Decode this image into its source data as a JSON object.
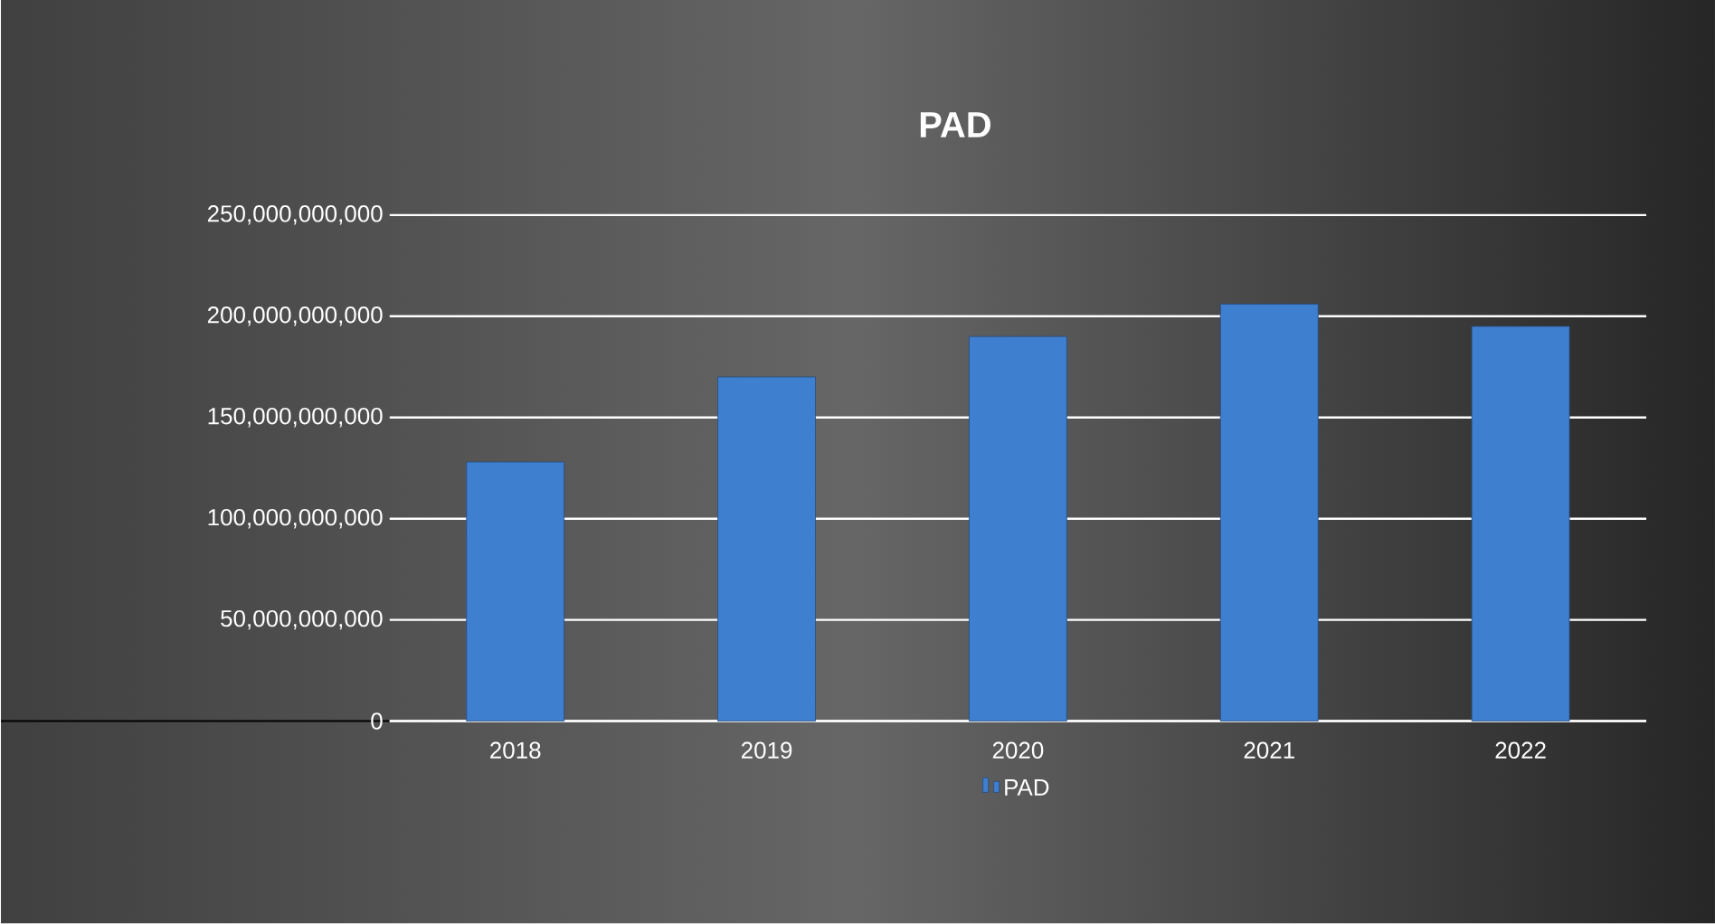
{
  "chart_data": {
    "type": "bar",
    "title": "PAD",
    "categories": [
      "2018",
      "2019",
      "2020",
      "2021",
      "2022"
    ],
    "series": [
      {
        "name": "PAD",
        "color": "#3f7fd0",
        "values": [
          128000000000,
          170000000000,
          190000000000,
          206000000000,
          195000000000
        ]
      }
    ],
    "ylim": [
      0,
      250000000000
    ],
    "yticks": [
      {
        "value": 0,
        "label": "0"
      },
      {
        "value": 50000000000,
        "label": "50,000,000,000"
      },
      {
        "value": 100000000000,
        "label": "100,000,000,000"
      },
      {
        "value": 150000000000,
        "label": "150,000,000,000"
      },
      {
        "value": 200000000000,
        "label": "200,000,000,000"
      },
      {
        "value": 250000000000,
        "label": "250,000,000,000"
      }
    ],
    "grid": "y",
    "legend": "bottom"
  }
}
